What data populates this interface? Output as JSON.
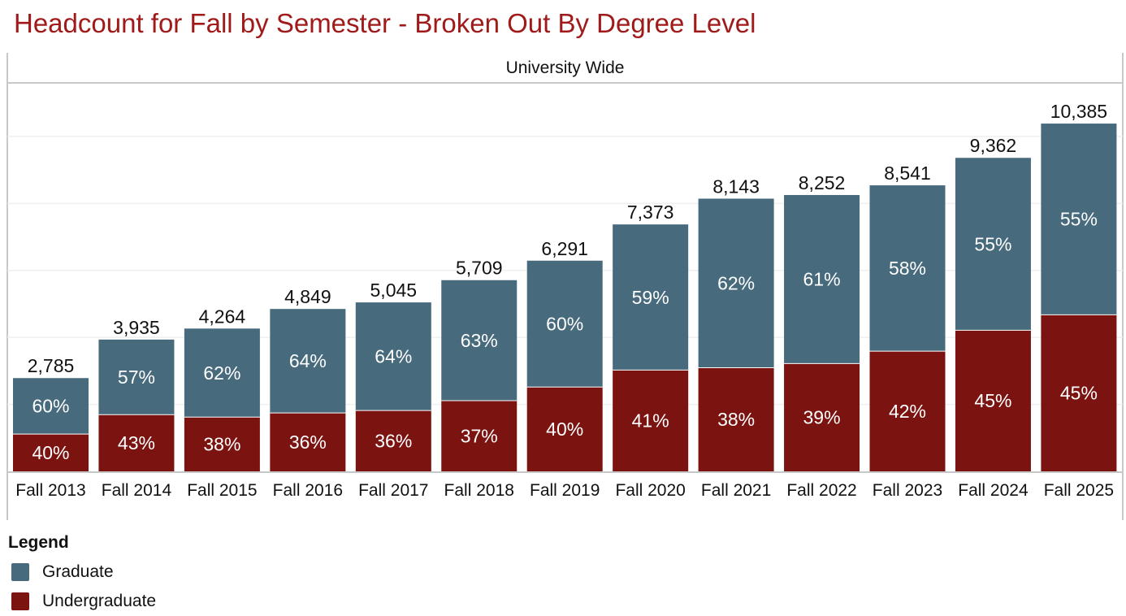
{
  "chart_data": {
    "type": "bar",
    "stacked": true,
    "title": "Headcount for Fall by Semester - Broken Out By Degree Level",
    "panel_label": "University Wide",
    "categories": [
      "Fall 2013",
      "Fall 2014",
      "Fall 2015",
      "Fall 2016",
      "Fall 2017",
      "Fall 2018",
      "Fall 2019",
      "Fall 2020",
      "Fall 2021",
      "Fall 2022",
      "Fall 2023",
      "Fall 2024",
      "Fall 2025"
    ],
    "totals": [
      2785,
      3935,
      4264,
      4849,
      5045,
      5709,
      6291,
      7373,
      8143,
      8252,
      8541,
      9362,
      10385
    ],
    "total_labels": [
      "2,785",
      "3,935",
      "4,264",
      "4,849",
      "5,045",
      "5,709",
      "6,291",
      "7,373",
      "8,143",
      "8,252",
      "8,541",
      "9,362",
      "10,385"
    ],
    "series": [
      {
        "name": "Undergraduate",
        "color": "#7b1410",
        "percent": [
          40,
          43,
          38,
          36,
          36,
          37,
          40,
          41,
          38,
          39,
          42,
          45,
          45
        ]
      },
      {
        "name": "Graduate",
        "color": "#476a7d",
        "percent": [
          60,
          57,
          62,
          64,
          64,
          63,
          60,
          59,
          62,
          61,
          58,
          55,
          55
        ]
      }
    ],
    "ylim": [
      0,
      11600
    ],
    "gridlines": [
      2000,
      4000,
      6000,
      8000,
      10000
    ],
    "grid": true,
    "xlabel": "",
    "ylabel": ""
  },
  "legend": {
    "title": "Legend",
    "items": [
      {
        "label": "Graduate",
        "color": "#476a7d"
      },
      {
        "label": "Undergraduate",
        "color": "#7b1410"
      }
    ]
  }
}
